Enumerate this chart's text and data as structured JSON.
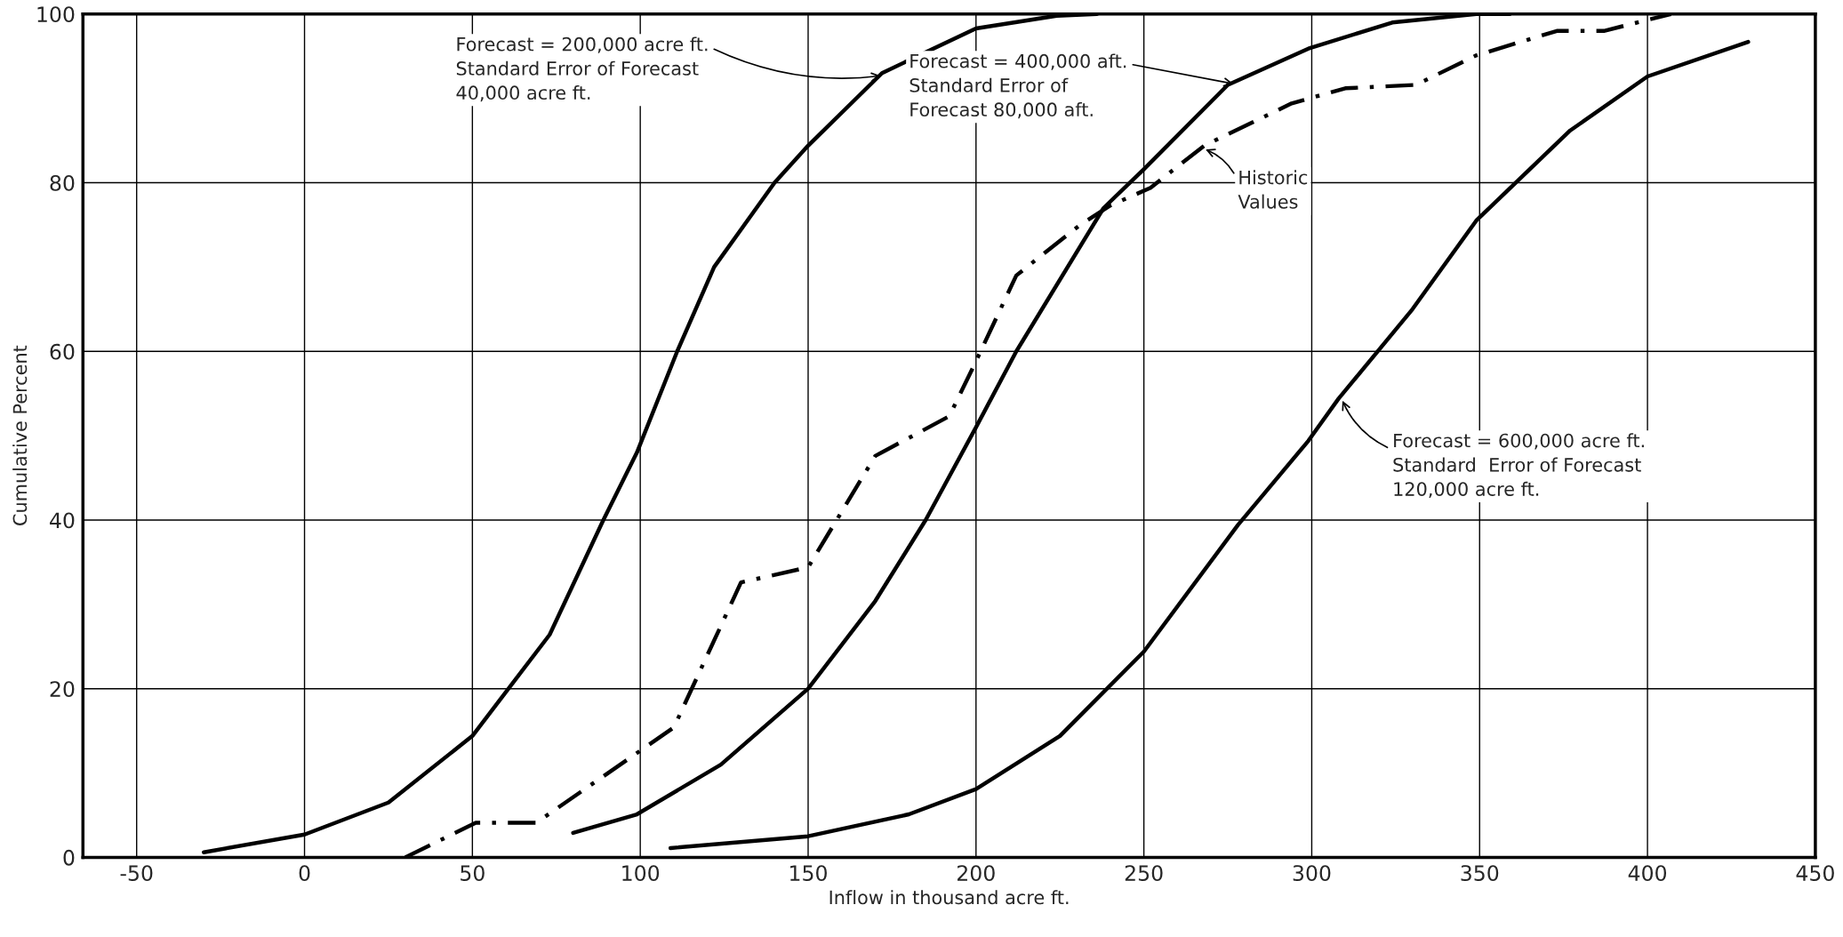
{
  "chart_data": {
    "type": "line",
    "xlabel": "Inflow in thousand acre ft.",
    "ylabel": "Cumulative Percent",
    "xlim": [
      -66,
      450
    ],
    "xticks": [
      -50,
      0,
      50,
      100,
      150,
      200,
      250,
      300,
      350,
      400,
      450
    ],
    "ylim": [
      0,
      100
    ],
    "yticks": [
      0,
      20,
      40,
      60,
      80,
      100
    ],
    "grid": true,
    "marker": "none",
    "series": [
      {
        "color": "#000000",
        "line_style": "solid",
        "x": [
          -30,
          0,
          25,
          50,
          73,
          89,
          99,
          111,
          122,
          140,
          150,
          172,
          200,
          224,
          236
        ],
        "values": [
          0.6,
          2.7,
          6.5,
          14.4,
          26.4,
          40,
          48,
          60,
          70,
          80,
          84.4,
          93,
          98.3,
          99.8,
          100
        ]
      },
      {
        "color": "#000000",
        "line_style": "dashdot",
        "x": [
          30,
          51,
          69,
          110,
          130,
          150,
          170,
          192,
          199,
          212,
          231,
          240,
          252,
          268,
          294,
          310,
          331,
          349,
          373,
          387,
          407
        ],
        "values": [
          0,
          4.1,
          4.1,
          15.4,
          32.6,
          34.4,
          47.6,
          52.3,
          58,
          69,
          75,
          77.3,
          79.4,
          84.4,
          89.4,
          91.2,
          91.6,
          95.1,
          98,
          98,
          100
        ]
      },
      {
        "color": "#000000",
        "line_style": "solid",
        "x": [
          80,
          99,
          124,
          150,
          170,
          185,
          200,
          212,
          238,
          250,
          275,
          299,
          324,
          349,
          359
        ],
        "values": [
          2.9,
          5.1,
          11,
          20,
          30.4,
          40,
          51,
          60,
          77,
          81.6,
          91.6,
          95.9,
          99,
          100,
          100
        ]
      },
      {
        "color": "#000000",
        "line_style": "solid",
        "x": [
          109,
          150,
          180,
          200,
          225,
          250,
          278,
          299,
          308,
          330,
          349,
          377,
          400,
          430
        ],
        "values": [
          1.1,
          2.5,
          5.1,
          8.1,
          14.4,
          24.4,
          39.4,
          49.4,
          54.4,
          65,
          75.5,
          86.2,
          92.6,
          96.7
        ]
      }
    ],
    "annotations": [
      {
        "text": "Forecast = 200,000 acre ft.\nStandard Error of Forecast\n40,000 acre ft.",
        "x": 172,
        "y": 92.7
      },
      {
        "text": "Forecast = 400,000 aft.\nStandard Error of\nForecast 80,000 aft.",
        "x": 277,
        "y": 91.7
      },
      {
        "text": "Historic\nValues",
        "x": 268,
        "y": 84
      },
      {
        "text": "Forecast = 600,000 acre ft.\nStandard  Error of Forecast\n120,000 acre ft.",
        "x": 309,
        "y": 54.3
      }
    ]
  }
}
